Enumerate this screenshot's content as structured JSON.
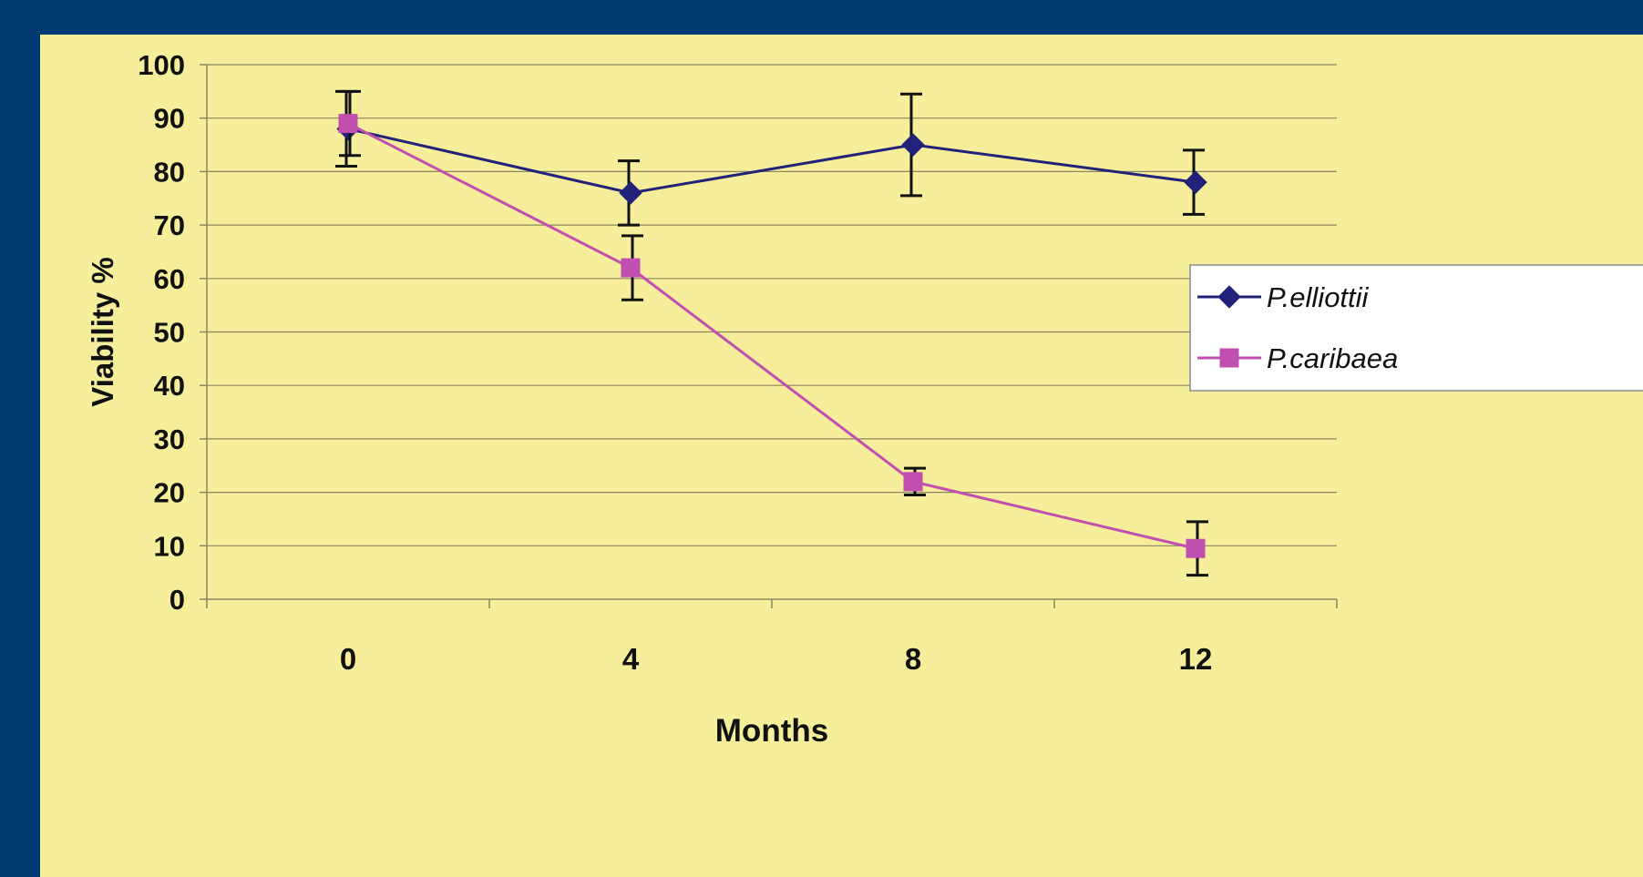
{
  "chart_data": {
    "type": "line",
    "xlabel": "Months",
    "ylabel": "Viability %",
    "categories": [
      "0",
      "4",
      "8",
      "12"
    ],
    "x": [
      0,
      4,
      8,
      12
    ],
    "ylim": [
      0,
      100
    ],
    "yticks": [
      0,
      10,
      20,
      30,
      40,
      50,
      60,
      70,
      80,
      90,
      100
    ],
    "grid": true,
    "legend_position": "right",
    "series": [
      {
        "name": "P.elliottii",
        "marker": "diamond",
        "color": "#22227a",
        "values": [
          88,
          76,
          85,
          78
        ],
        "error": [
          7,
          6,
          9.5,
          6
        ]
      },
      {
        "name": "P.caribaea",
        "marker": "square",
        "color": "#c04fb0",
        "values": [
          89,
          62,
          22,
          9.5
        ],
        "error": [
          6,
          6,
          2.5,
          5
        ]
      }
    ],
    "colors": {
      "frame": "#003a70",
      "background": "#f6ee9a",
      "grid": "#8a8560",
      "error_bar": "#111111"
    }
  }
}
